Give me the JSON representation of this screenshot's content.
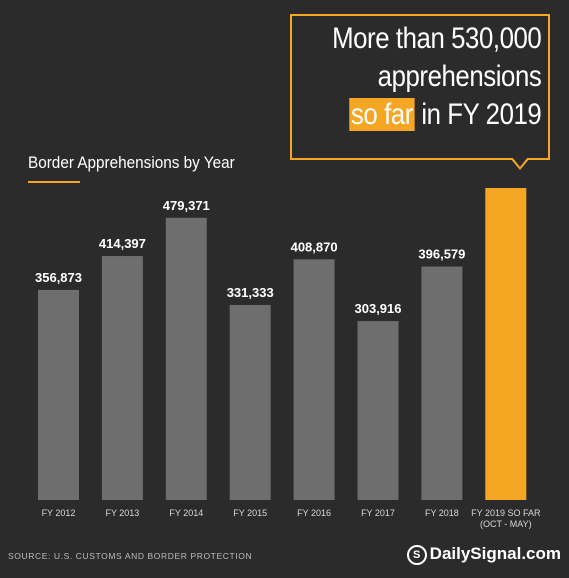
{
  "callout": {
    "line1": "More than 530,000",
    "line2": "apprehensions",
    "highlight": "so far",
    "line3_rest": " in FY 2019"
  },
  "chart_title": "Border Apprehensions by Year",
  "source": "SOURCE: U.S. CUSTOMS AND BORDER PROTECTION",
  "brand": {
    "logo": "S",
    "text": "DailySignal.com"
  },
  "colors": {
    "background": "#2b2b2b",
    "bar": "#6e6e6e",
    "highlight_bar": "#f5a623",
    "accent": "#f5a623"
  },
  "chart_data": {
    "type": "bar",
    "title": "Border Apprehensions by Year",
    "xlabel": "",
    "ylabel": "",
    "categories": [
      "FY 2012",
      "FY 2013",
      "FY 2014",
      "FY 2015",
      "FY 2016",
      "FY 2017",
      "FY 2018",
      "FY 2019 SO FAR\n(OCT - MAY)"
    ],
    "values": [
      356873,
      414397,
      479371,
      331333,
      408870,
      303916,
      396579,
      530000
    ],
    "data_labels": [
      "356,873",
      "414,397",
      "479,371",
      "331,333",
      "408,870",
      "303,916",
      "396,579",
      ""
    ],
    "highlighted_index": 7,
    "ylim": [
      0,
      530000
    ],
    "grid": false,
    "legend": "none"
  }
}
